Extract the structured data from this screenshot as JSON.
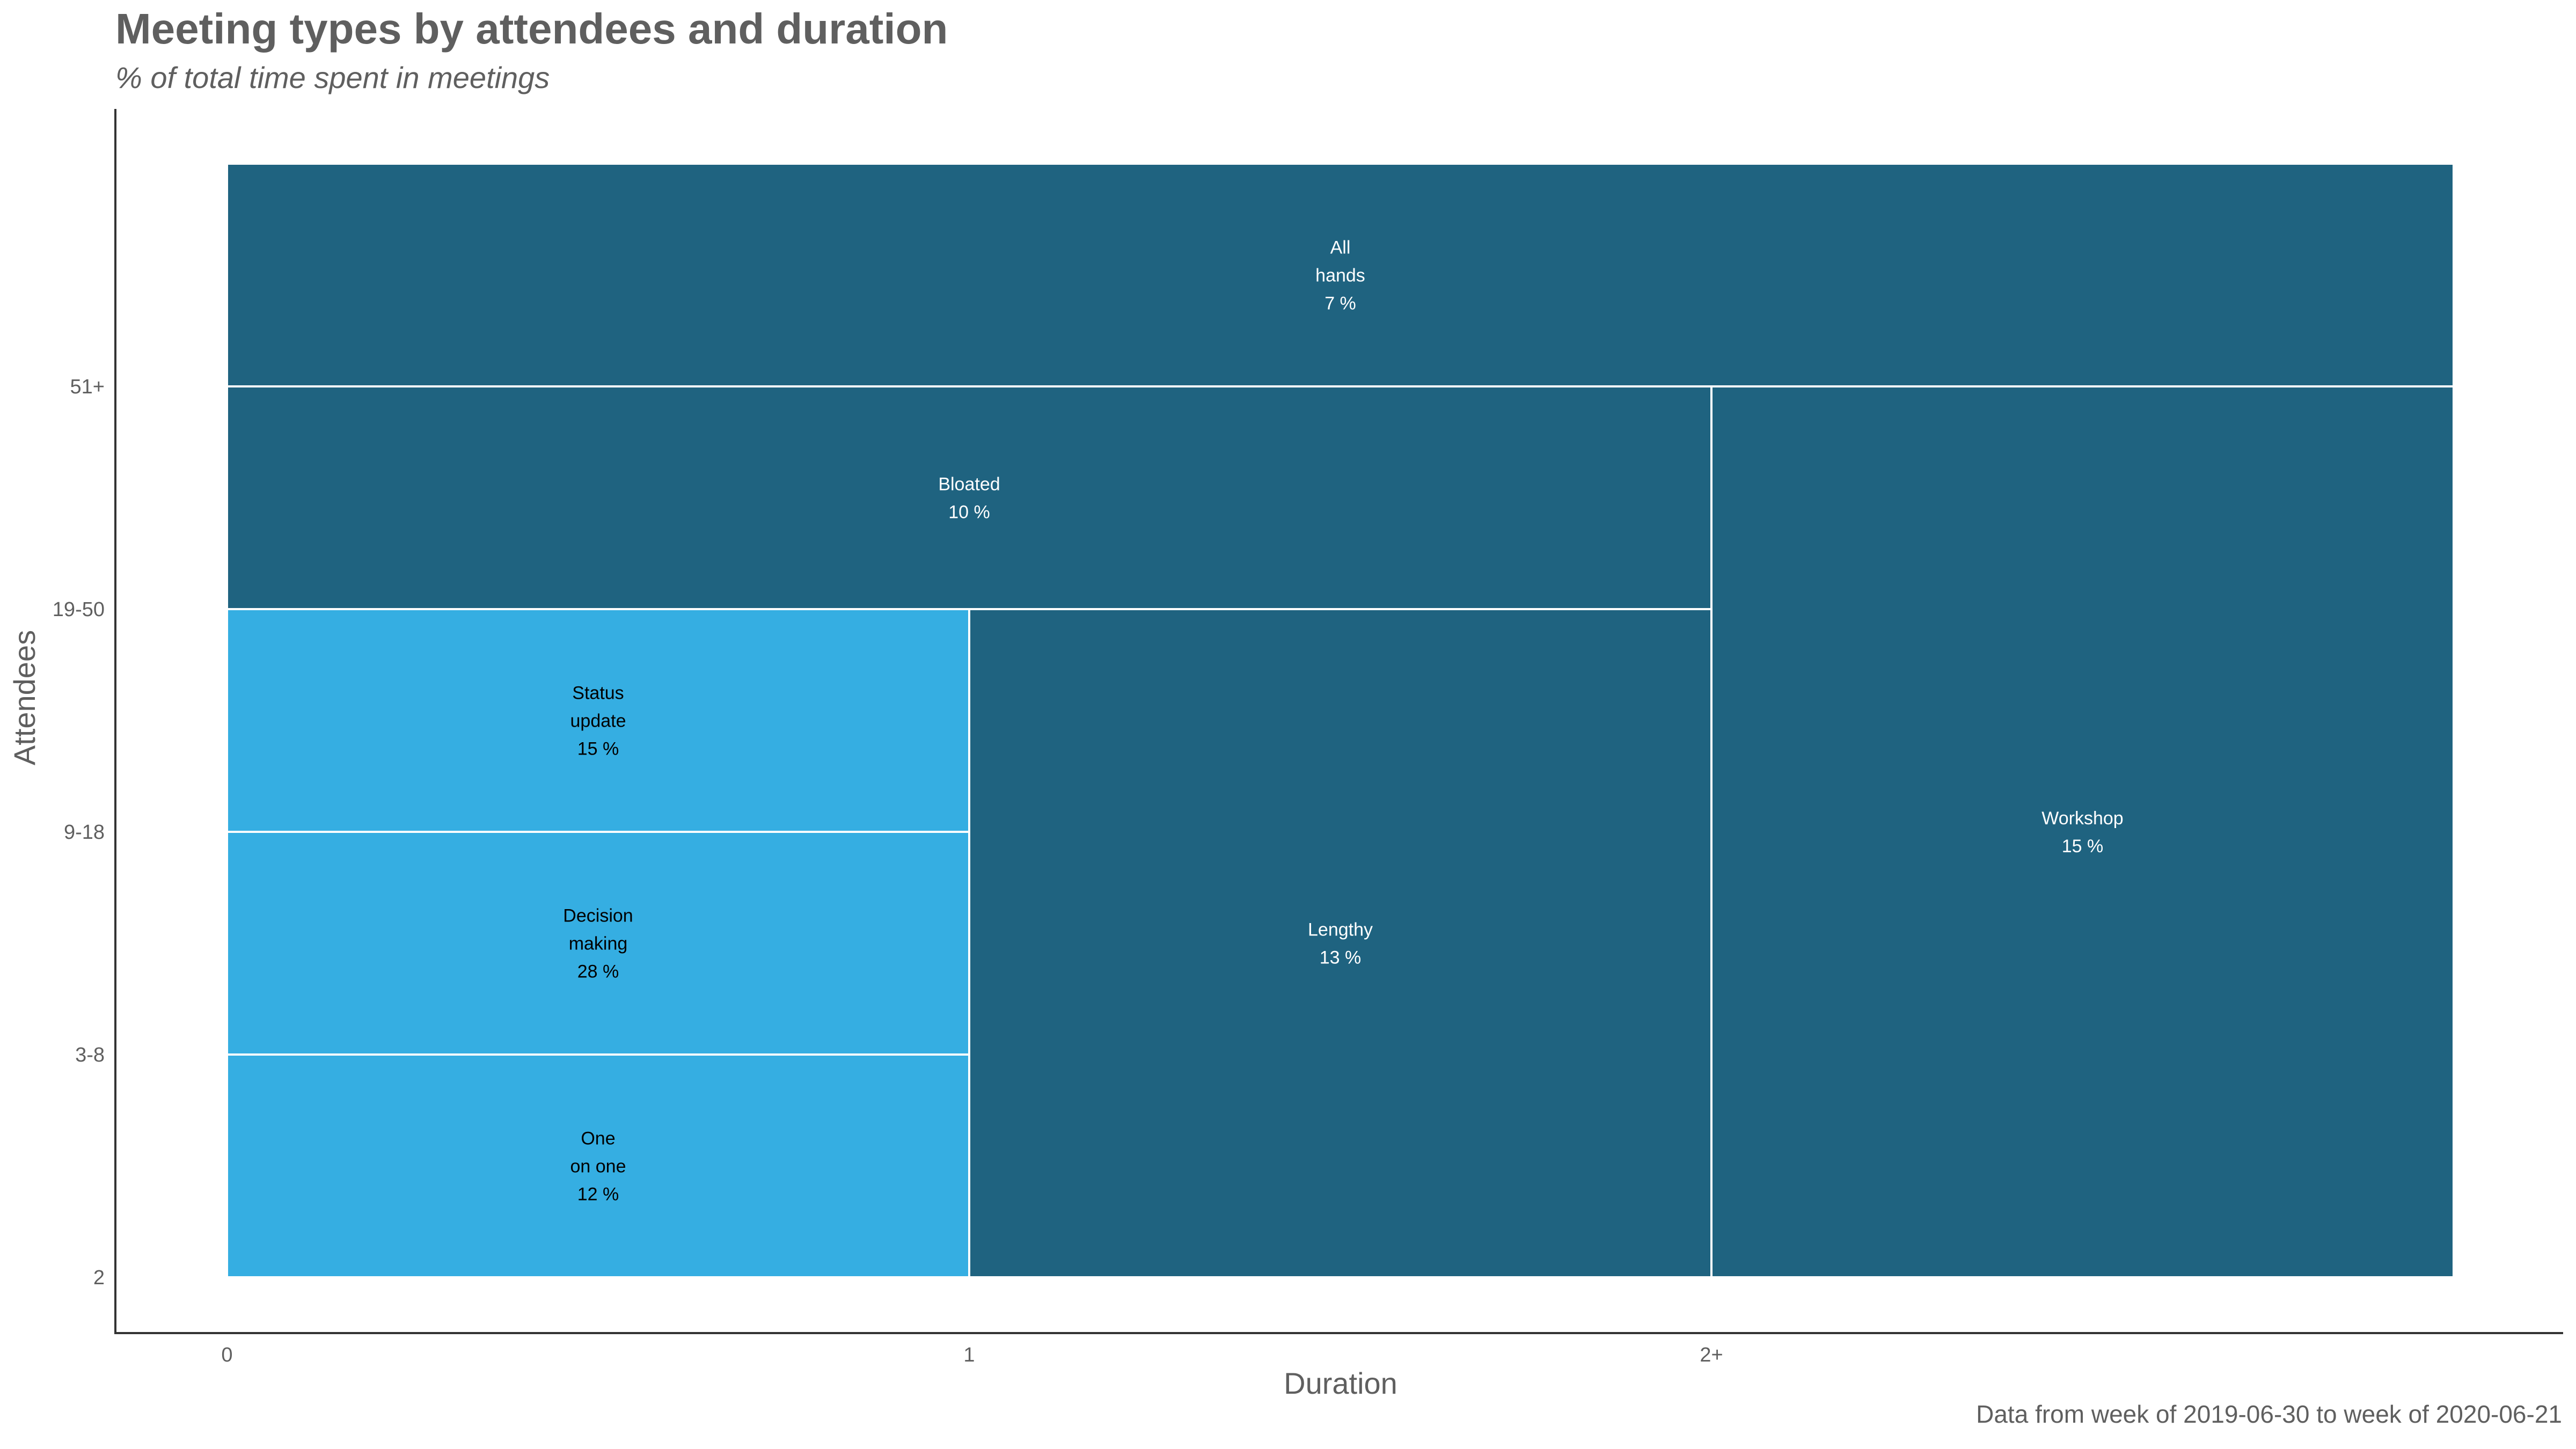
{
  "chart_data": {
    "type": "mosaic",
    "title": "Meeting types by attendees and duration",
    "subtitle": "% of total time spent in meetings",
    "xlabel": "Duration",
    "ylabel": "Attendees",
    "caption": "Data from week of 2019-06-30 to week of 2020-06-21",
    "x_ticks": [
      "0",
      "1",
      "2+"
    ],
    "y_ticks": [
      "2",
      "3-8",
      "9-18",
      "19-50",
      "51+"
    ],
    "colors": {
      "highlight": "#35aee2",
      "base": "#1f6380",
      "border": "#ffffff",
      "axis": "#333333"
    },
    "cells": [
      {
        "label": "One on one",
        "lines": [
          "One",
          "on one",
          "12 %"
        ],
        "value": 12,
        "x": [
          0,
          1
        ],
        "y": [
          0,
          1
        ],
        "group": "highlight"
      },
      {
        "label": "Decision making",
        "lines": [
          "Decision",
          "making",
          "28 %"
        ],
        "value": 28,
        "x": [
          0,
          1
        ],
        "y": [
          1,
          2
        ],
        "group": "highlight"
      },
      {
        "label": "Status update",
        "lines": [
          "Status",
          "update",
          "15 %"
        ],
        "value": 15,
        "x": [
          0,
          1
        ],
        "y": [
          2,
          3
        ],
        "group": "highlight"
      },
      {
        "label": "Lengthy",
        "lines": [
          "Lengthy",
          "13 %"
        ],
        "value": 13,
        "x": [
          1,
          2
        ],
        "y": [
          0,
          3
        ],
        "group": "base"
      },
      {
        "label": "Workshop",
        "lines": [
          "Workshop",
          "15 %"
        ],
        "value": 15,
        "x": [
          2,
          3
        ],
        "y": [
          0,
          4
        ],
        "group": "base"
      },
      {
        "label": "Bloated",
        "lines": [
          "Bloated",
          "10 %"
        ],
        "value": 10,
        "x": [
          0,
          2
        ],
        "y": [
          3,
          4
        ],
        "group": "base"
      },
      {
        "label": "All hands",
        "lines": [
          "All",
          "hands",
          "7 %"
        ],
        "value": 7,
        "x": [
          0,
          3
        ],
        "y": [
          4,
          5
        ],
        "group": "base"
      }
    ]
  }
}
